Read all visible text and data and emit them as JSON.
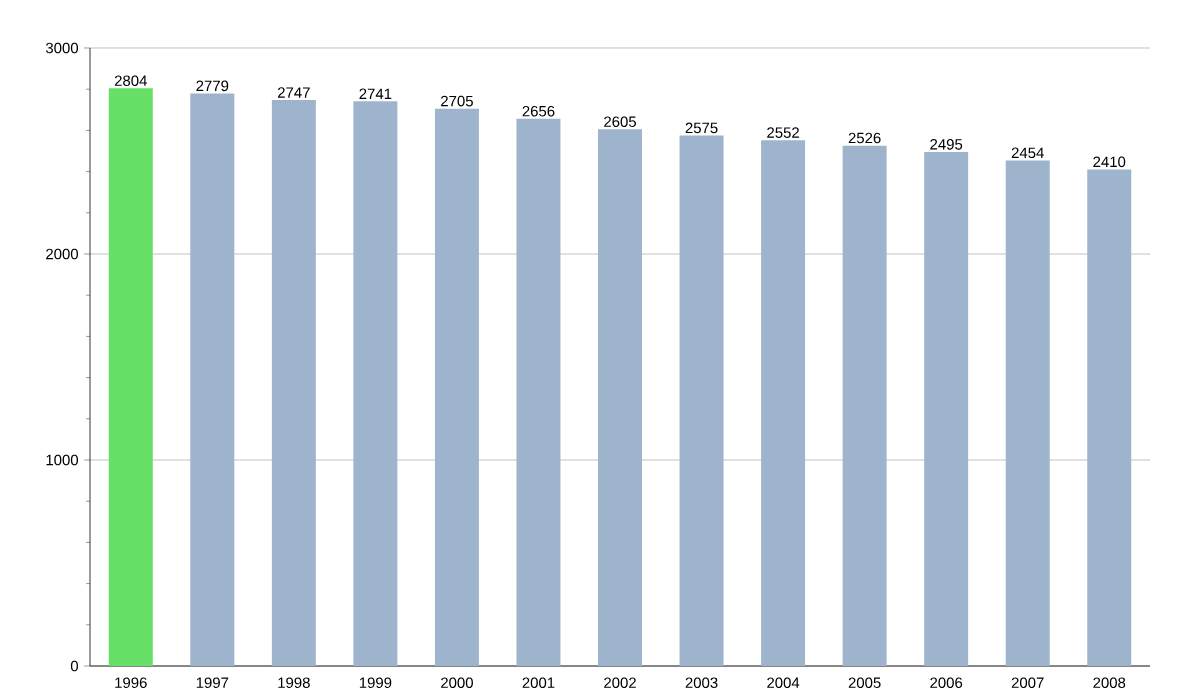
{
  "chart_data": {
    "type": "bar",
    "categories": [
      "1996",
      "1997",
      "1998",
      "1999",
      "2000",
      "2001",
      "2002",
      "2003",
      "2004",
      "2005",
      "2006",
      "2007",
      "2008"
    ],
    "values": [
      2804,
      2779,
      2747,
      2741,
      2705,
      2656,
      2605,
      2575,
      2552,
      2526,
      2495,
      2454,
      2410
    ],
    "colors": [
      "#66e066",
      "#9db4cc",
      "#9db4cc",
      "#9db4cc",
      "#9db4cc",
      "#9db4cc",
      "#9db4cc",
      "#9db4cc",
      "#9db4cc",
      "#9db4cc",
      "#9db4cc",
      "#9db4cc",
      "#9db4cc"
    ],
    "ylim": [
      0,
      3000
    ],
    "yticks": [
      0,
      1000,
      2000,
      3000
    ],
    "grid": "y",
    "data_labels": true
  }
}
